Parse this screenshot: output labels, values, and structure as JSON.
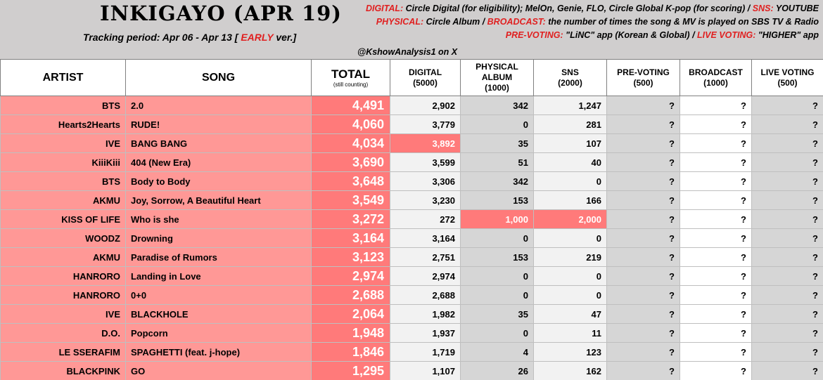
{
  "header": {
    "title": "INKIGAYO (APR 19)",
    "tracking_prefix": "Tracking period: Apr 06 - Apr 13 [",
    "tracking_early": "EARLY",
    "tracking_suffix": "ver.]",
    "credit": "@KshowAnalysis1 on X",
    "info_lines": [
      [
        {
          "k": "DIGITAL: "
        },
        {
          "t": "Circle Digital (for eligibility); MelOn, Genie, FLO, Circle Global K-pop (for scoring) / "
        },
        {
          "k": "SNS: "
        },
        {
          "t": "YOUTUBE"
        }
      ],
      [
        {
          "k": "PHYSICAL: "
        },
        {
          "t": "Circle Album / "
        },
        {
          "k": "BROADCAST: "
        },
        {
          "t": "the number of times the song & MV is played on SBS TV & Radio"
        }
      ],
      [
        {
          "k": "PRE-VOTING: "
        },
        {
          "t": "\"LiNC\" app (Korean & Global) / "
        },
        {
          "k": "LIVE VOTING: "
        },
        {
          "t": "\"HIGHER\" app"
        }
      ]
    ],
    "accent_color": "#e02020"
  },
  "columns": {
    "artist": "ARTIST",
    "song": "SONG",
    "total": "TOTAL",
    "total_sub": "(still counting)",
    "digital": "DIGITAL",
    "digital_max": "(5000)",
    "physical_1": "PHYSICAL",
    "physical_2": "ALBUM",
    "physical_max": "(1000)",
    "sns": "SNS",
    "sns_max": "(2000)",
    "prevoting": "PRE-VOTING",
    "prevoting_max": "(500)",
    "broadcast": "BROADCAST",
    "broadcast_max": "(1000)",
    "livevoting": "LIVE VOTING",
    "livevoting_max": "(500)"
  },
  "rows": [
    {
      "artist": "BTS",
      "song": "2.0",
      "total": "4,491",
      "digital": "2,902",
      "physical": "342",
      "sns": "1,247",
      "prevoting": "?",
      "broadcast": "?",
      "livevoting": "?",
      "hl": []
    },
    {
      "artist": "Hearts2Hearts",
      "song": "RUDE!",
      "total": "4,060",
      "digital": "3,779",
      "physical": "0",
      "sns": "281",
      "prevoting": "?",
      "broadcast": "?",
      "livevoting": "?",
      "hl": []
    },
    {
      "artist": "IVE",
      "song": "BANG BANG",
      "total": "4,034",
      "digital": "3,892",
      "physical": "35",
      "sns": "107",
      "prevoting": "?",
      "broadcast": "?",
      "livevoting": "?",
      "hl": [
        "digital"
      ]
    },
    {
      "artist": "KiiiKiii",
      "song": "404 (New Era)",
      "total": "3,690",
      "digital": "3,599",
      "physical": "51",
      "sns": "40",
      "prevoting": "?",
      "broadcast": "?",
      "livevoting": "?",
      "hl": []
    },
    {
      "artist": "BTS",
      "song": "Body to Body",
      "total": "3,648",
      "digital": "3,306",
      "physical": "342",
      "sns": "0",
      "prevoting": "?",
      "broadcast": "?",
      "livevoting": "?",
      "hl": []
    },
    {
      "artist": "AKMU",
      "song": "Joy, Sorrow, A Beautiful Heart",
      "total": "3,549",
      "digital": "3,230",
      "physical": "153",
      "sns": "166",
      "prevoting": "?",
      "broadcast": "?",
      "livevoting": "?",
      "hl": []
    },
    {
      "artist": "KISS OF LIFE",
      "song": "Who is she",
      "total": "3,272",
      "digital": "272",
      "physical": "1,000",
      "sns": "2,000",
      "prevoting": "?",
      "broadcast": "?",
      "livevoting": "?",
      "hl": [
        "physical",
        "sns"
      ]
    },
    {
      "artist": "WOODZ",
      "song": "Drowning",
      "total": "3,164",
      "digital": "3,164",
      "physical": "0",
      "sns": "0",
      "prevoting": "?",
      "broadcast": "?",
      "livevoting": "?",
      "hl": []
    },
    {
      "artist": "AKMU",
      "song": "Paradise of Rumors",
      "total": "3,123",
      "digital": "2,751",
      "physical": "153",
      "sns": "219",
      "prevoting": "?",
      "broadcast": "?",
      "livevoting": "?",
      "hl": []
    },
    {
      "artist": "HANRORO",
      "song": "Landing in Love",
      "total": "2,974",
      "digital": "2,974",
      "physical": "0",
      "sns": "0",
      "prevoting": "?",
      "broadcast": "?",
      "livevoting": "?",
      "hl": []
    },
    {
      "artist": "HANRORO",
      "song": "0+0",
      "total": "2,688",
      "digital": "2,688",
      "physical": "0",
      "sns": "0",
      "prevoting": "?",
      "broadcast": "?",
      "livevoting": "?",
      "hl": []
    },
    {
      "artist": "IVE",
      "song": "BLACKHOLE",
      "total": "2,064",
      "digital": "1,982",
      "physical": "35",
      "sns": "47",
      "prevoting": "?",
      "broadcast": "?",
      "livevoting": "?",
      "hl": []
    },
    {
      "artist": "D.O.",
      "song": "Popcorn",
      "total": "1,948",
      "digital": "1,937",
      "physical": "0",
      "sns": "11",
      "prevoting": "?",
      "broadcast": "?",
      "livevoting": "?",
      "hl": []
    },
    {
      "artist": "LE SSERAFIM",
      "song": "SPAGHETTI (feat. j-hope)",
      "total": "1,846",
      "digital": "1,719",
      "physical": "4",
      "sns": "123",
      "prevoting": "?",
      "broadcast": "?",
      "livevoting": "?",
      "hl": []
    },
    {
      "artist": "BLACKPINK",
      "song": "GO",
      "total": "1,295",
      "digital": "1,107",
      "physical": "26",
      "sns": "162",
      "prevoting": "?",
      "broadcast": "?",
      "livevoting": "?",
      "hl": []
    }
  ]
}
